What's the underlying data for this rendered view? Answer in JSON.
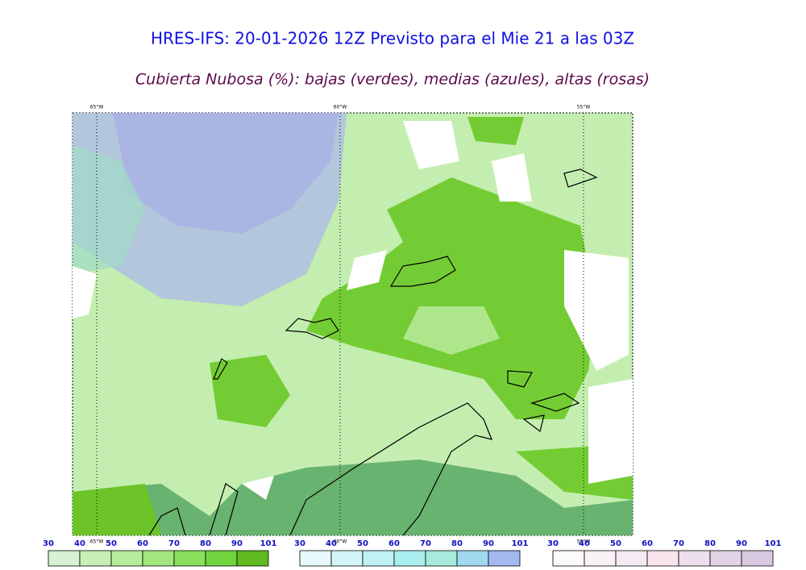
{
  "header": {
    "title": "HRES-IFS: 20-01-2026 12Z Previsto para el Mie 21 a las 03Z",
    "subtitle": "Cubierta Nubosa (%): bajas (verdes), medias (azules), altas (rosas)"
  },
  "map": {
    "longitude_labels": [
      "65°W",
      "60°W",
      "55°W"
    ]
  },
  "colorbars": [
    {
      "labels": [
        30,
        40,
        50,
        60,
        70,
        80,
        90,
        101
      ],
      "colors": [
        "#d6f2d2",
        "#c6f0b4",
        "#b6ec9c",
        "#a2e67e",
        "#88e05c",
        "#70d43e",
        "#5eba1e"
      ]
    },
    {
      "labels": [
        30,
        40,
        50,
        60,
        70,
        80,
        90,
        101
      ],
      "colors": [
        "#e8f9fb",
        "#d4f5f8",
        "#bff1f4",
        "#aaeef0",
        "#a6eadc",
        "#a0d8f0",
        "#a4b8f0"
      ]
    },
    {
      "labels": [
        30,
        40,
        50,
        60,
        70,
        80,
        90,
        101
      ],
      "colors": [
        "#fcfafb",
        "#f8f1f5",
        "#f5eaf1",
        "#f8e4ec",
        "#ecdeec",
        "#e2d2e6",
        "#d8c8e0"
      ]
    }
  ]
}
